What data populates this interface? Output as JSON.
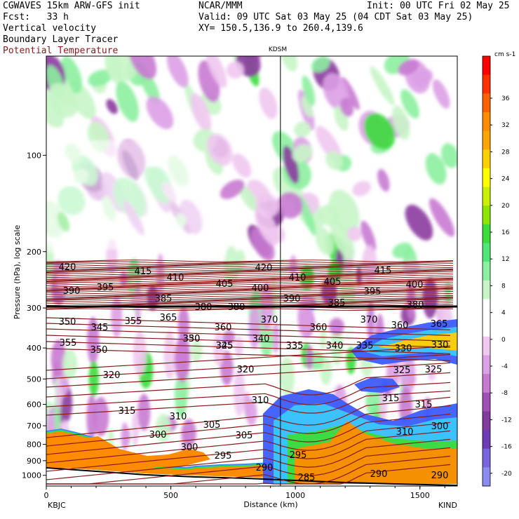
{
  "header": {
    "model": "CGWAVES 15km ARW-GFS init",
    "org": "NCAR/MMM",
    "init": "Init: 00 UTC Fri 02 May 25",
    "fcst": "Fcst:   33 h",
    "valid": "Valid: 09 UTC Sat 03 May 25 (04 CDT Sat 03 May 25)",
    "xy": "XY= 150.5,136.9 to 260.4,139.6",
    "field1": "Vertical velocity",
    "field2": "Boundary Layer Tracer",
    "field3": "Potential Temperature",
    "field3_color": "#8b1a1a"
  },
  "chart_data": {
    "type": "heatmap",
    "marker_label": "KDSM",
    "marker_x_km": 940,
    "xlabel": "Distance (km)",
    "ylabel": "Pressure (hPa), log scale",
    "xlim": [
      0,
      1650
    ],
    "x_ticks": [
      0,
      500,
      1000,
      1500
    ],
    "x_tick_labels": [
      "0",
      "500",
      "1000",
      "1500"
    ],
    "x_end_labels": [
      "KBJC",
      "KIND"
    ],
    "y_scale": "log",
    "y_ticks": [
      100,
      200,
      300,
      400,
      500,
      600,
      700,
      800,
      900,
      1000
    ],
    "y_tick_labels": [
      "100",
      "200",
      "300",
      "400",
      "500",
      "600",
      "700",
      "800",
      "900",
      "1000"
    ],
    "colorbar": {
      "units": "cm s-1",
      "labels": [
        "36",
        "32",
        "28",
        "24",
        "20",
        "16",
        "12",
        "8",
        "4",
        "0",
        "-4",
        "-8",
        "-12",
        "-16",
        "-20"
      ],
      "colors": [
        "#ff0000",
        "#ff3000",
        "#ff6000",
        "#ff8c00",
        "#ffa500",
        "#ffd000",
        "#ffff00",
        "#c8f000",
        "#8ce600",
        "#3cdc3c",
        "#50e678",
        "#8cf0a0",
        "#c8f5c8",
        "#ffffff",
        "#ffffff",
        "#f0c8f0",
        "#dca0e6",
        "#c87ad2",
        "#a050b4",
        "#823ca0",
        "#6e3cb4",
        "#7864dc",
        "#8c8cf0"
      ]
    },
    "theta_labels": [
      "420",
      "415",
      "410",
      "420",
      "410",
      "415",
      "390",
      "395",
      "405",
      "400",
      "405",
      "395",
      "400",
      "385",
      "390",
      "385",
      "380",
      "380",
      "380",
      "360",
      "370",
      "350",
      "345",
      "355",
      "365",
      "360",
      "370",
      "360",
      "365",
      "355",
      "350",
      "330",
      "325",
      "340",
      "335",
      "350",
      "345",
      "340",
      "335",
      "330",
      "330",
      "320",
      "320",
      "325",
      "325",
      "315",
      "310",
      "315",
      "315",
      "310",
      "305",
      "300",
      "305",
      "300",
      "310",
      "300",
      "295",
      "295",
      "290",
      "285",
      "290",
      "290"
    ],
    "theta_label_series": "Potential Temperature (K)"
  }
}
